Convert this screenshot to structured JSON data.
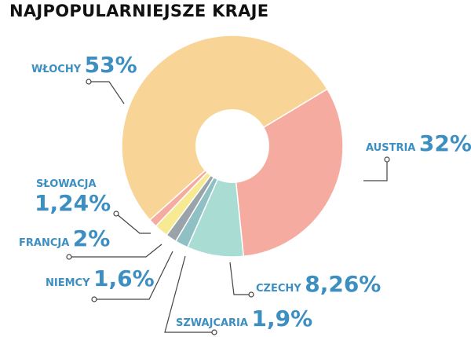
{
  "title": "NAJPOPULARNIEJSZE KRAJE",
  "chart_data": {
    "type": "pie",
    "title": "NAJPOPULARNIEJSZE KRAJE",
    "slices": [
      {
        "name": "AUSTRIA",
        "value": 32,
        "label": "32%",
        "color": "#f5aba0"
      },
      {
        "name": "CZECHY",
        "value": 8.26,
        "label": "8,26%",
        "color": "#a9ddd4"
      },
      {
        "name": "SZWAJCARIA",
        "value": 1.9,
        "label": "1,9%",
        "color": "#8fc0c4"
      },
      {
        "name": "NIEMCY",
        "value": 1.6,
        "label": "1,6%",
        "color": "#9aa3aa"
      },
      {
        "name": "FRANCJA",
        "value": 2,
        "label": "2%",
        "color": "#f8ea92"
      },
      {
        "name": "SŁOWACJA",
        "value": 1.24,
        "label": "1,24%",
        "color": "#f5aba0"
      },
      {
        "name": "WŁOCHY",
        "value": 53,
        "label": "53%",
        "color": "#f8d597"
      }
    ],
    "donut": true,
    "label_color": "#3d8fc2",
    "leader_color": "#444444"
  }
}
